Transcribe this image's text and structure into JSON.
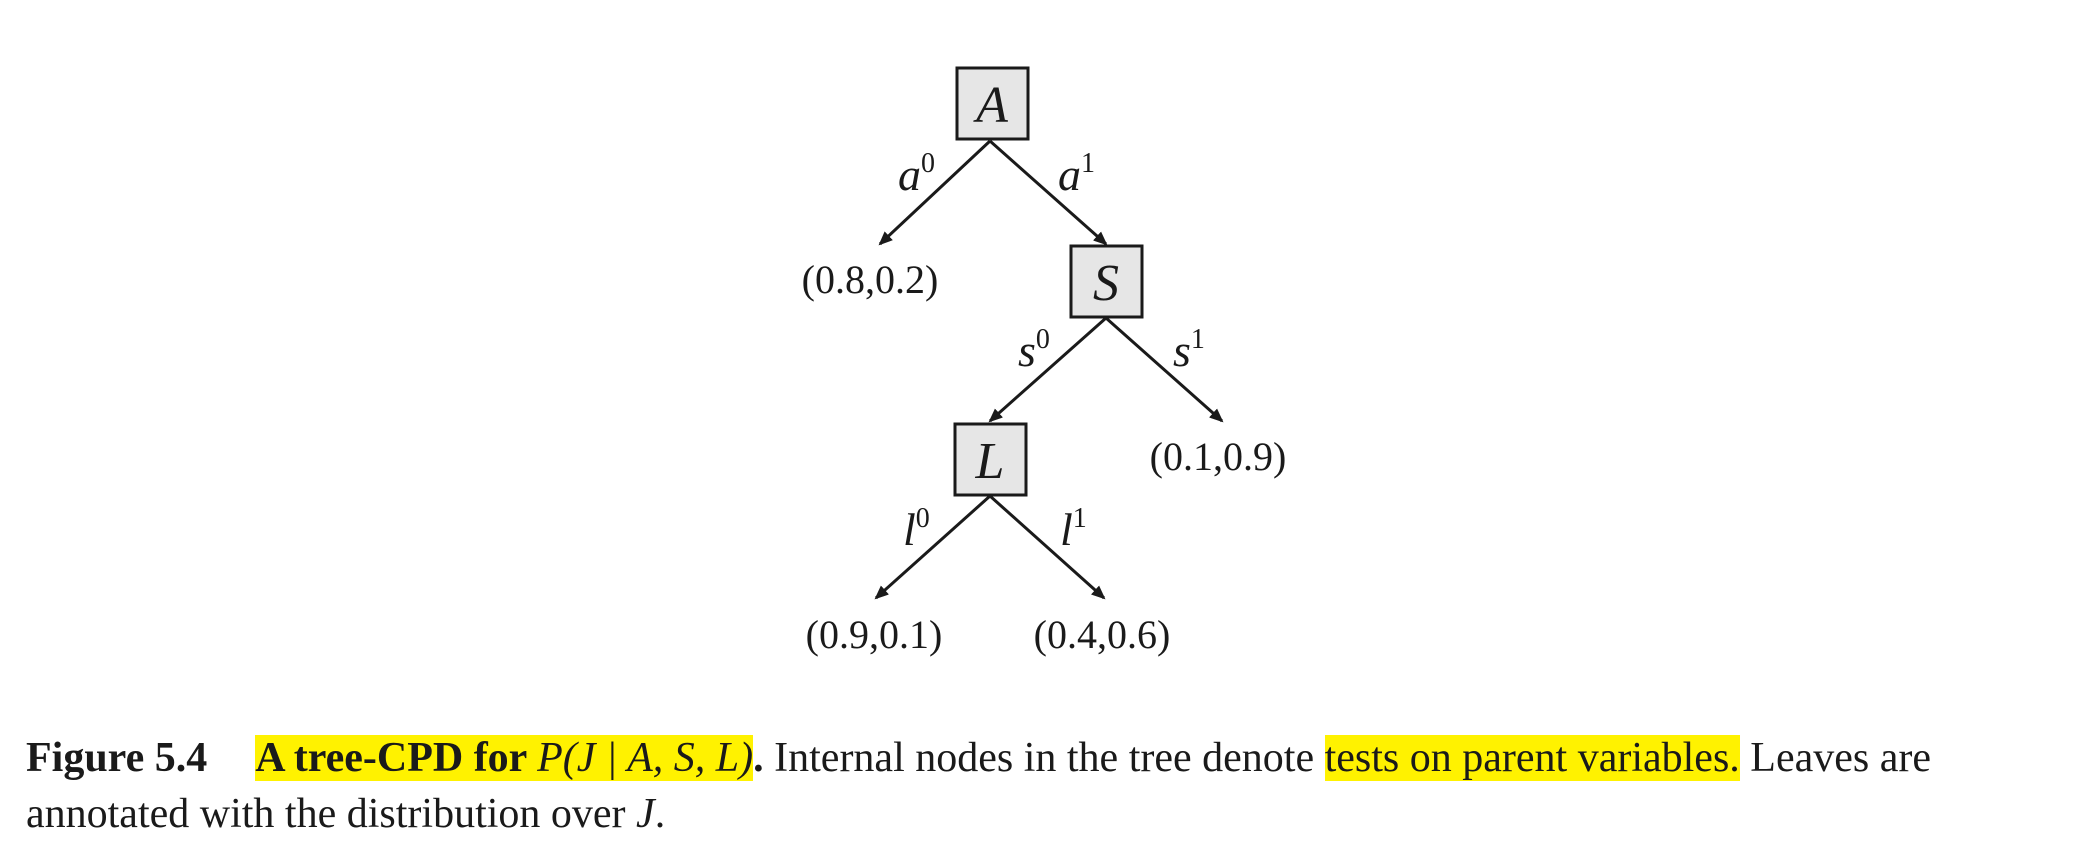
{
  "tree": {
    "nodes": [
      {
        "id": "A",
        "label": "A"
      },
      {
        "id": "S",
        "label": "S"
      },
      {
        "id": "L",
        "label": "L"
      }
    ],
    "edges": [
      {
        "from": "A",
        "var": "a",
        "value": "0",
        "to": "leaf-1"
      },
      {
        "from": "A",
        "var": "a",
        "value": "1",
        "to": "S"
      },
      {
        "from": "S",
        "var": "s",
        "value": "0",
        "to": "L"
      },
      {
        "from": "S",
        "var": "s",
        "value": "1",
        "to": "leaf-2"
      },
      {
        "from": "L",
        "var": "l",
        "value": "0",
        "to": "leaf-3"
      },
      {
        "from": "L",
        "var": "l",
        "value": "1",
        "to": "leaf-4"
      }
    ],
    "leaves": [
      {
        "id": "leaf-1",
        "label": "(0.8,0.2)"
      },
      {
        "id": "leaf-2",
        "label": "(0.1,0.9)"
      },
      {
        "id": "leaf-3",
        "label": "(0.9,0.1)"
      },
      {
        "id": "leaf-4",
        "label": "(0.4,0.6)"
      }
    ]
  },
  "caption": {
    "number": "Figure 5.4",
    "title_text": "A tree-CPD for ",
    "title_math": "P(J | A, S, L)",
    "title_end": ".",
    "body_1": " Internal nodes in the tree denote ",
    "highlight_2": "tests on parent variables.",
    "body_2": " Leaves are annotated with the distribution over ",
    "body_var": "J",
    "body_end": "."
  },
  "colors": {
    "highlight": "#fff200",
    "node_fill": "#e6e6e6",
    "ink": "#1a1a1a"
  }
}
